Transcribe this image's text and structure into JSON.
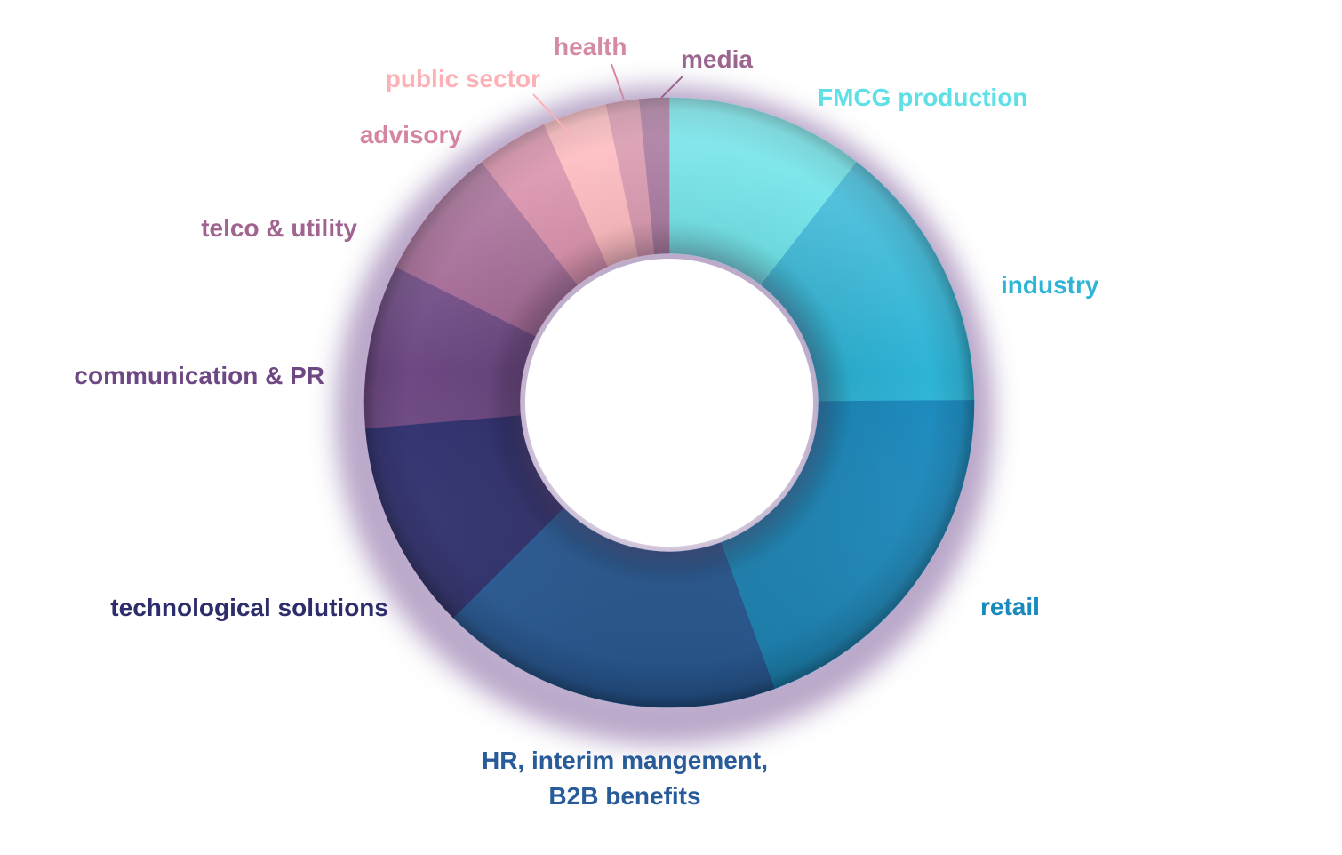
{
  "chart_data": {
    "type": "pie",
    "variant": "donut",
    "title": "",
    "legend": "none",
    "segments": [
      {
        "label": "FMCG production",
        "lines": [
          "FMCG production"
        ],
        "value": 10.8,
        "color": "#5ee0e6",
        "label_color": "#5ee0e6"
      },
      {
        "label": "industry",
        "lines": [
          "industry"
        ],
        "value": 14.7,
        "color": "#2eb4d6",
        "label_color": "#2eb4d6"
      },
      {
        "label": "retail",
        "lines": [
          "retail"
        ],
        "value": 20.0,
        "color": "#1a89bd",
        "label_color": "#1a89bd"
      },
      {
        "label": "HR, interim mangement, B2B benefits",
        "lines": [
          "HR, interim mangement,",
          "B2B benefits"
        ],
        "value": 18.6,
        "color": "#275b99",
        "label_color": "#275b99"
      },
      {
        "label": "technological solutions",
        "lines": [
          "technological solutions"
        ],
        "value": 11.4,
        "color": "#303070",
        "label_color": "#2e2d6b"
      },
      {
        "label": "communication & PR",
        "lines": [
          "communication & PR"
        ],
        "value": 8.9,
        "color": "#6d4883",
        "label_color": "#6d4883"
      },
      {
        "label": "telco & utility",
        "lines": [
          "telco & utility"
        ],
        "value": 7.3,
        "color": "#a16491",
        "label_color": "#a16491"
      },
      {
        "label": "advisory",
        "lines": [
          "advisory"
        ],
        "value": 3.9,
        "color": "#d584a2",
        "label_color": "#d584a2"
      },
      {
        "label": "public sector",
        "lines": [
          "public sector"
        ],
        "value": 3.5,
        "color": "#fdb1b6",
        "label_color": "#fdb1b6"
      },
      {
        "label": "health",
        "lines": [
          "health"
        ],
        "value": 1.8,
        "color": "#d48aa4",
        "label_color": "#d48aa4"
      },
      {
        "label": "media",
        "lines": [
          "media"
        ],
        "value": 1.6,
        "color": "#9c6590",
        "label_color": "#9c6590"
      }
    ],
    "shadow_color": "#b09bc2"
  }
}
